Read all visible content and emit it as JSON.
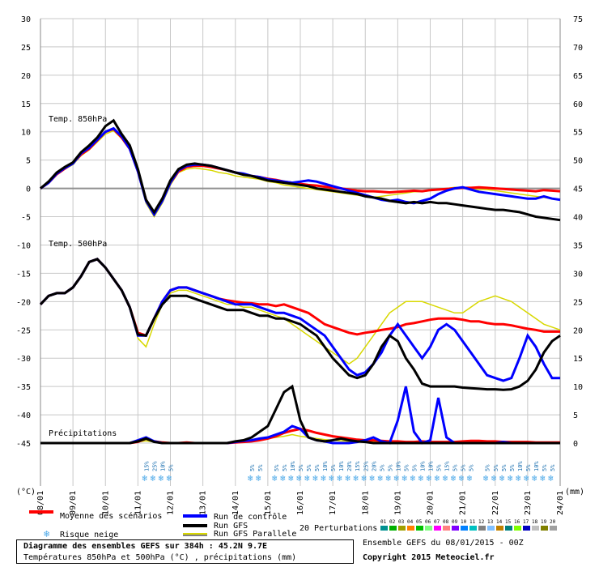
{
  "chart_data": {
    "type": "line",
    "title": "Diagramme des ensembles GEFS sur 384h : 45.2N 9.7E",
    "subtitle": "Températures 850hPa et 500hPa (°C) , précipitations (mm)",
    "left_axis": {
      "unit_label": "(°C)",
      "ticks": [
        30,
        25,
        20,
        15,
        10,
        5,
        0,
        -5,
        -10,
        -15,
        -20,
        -25,
        -30,
        -35,
        -40,
        -45
      ],
      "ylim": [
        -45,
        30
      ]
    },
    "right_axis": {
      "unit_label": "(mm)",
      "ticks": [
        75,
        70,
        65,
        60,
        55,
        50,
        45,
        40,
        35,
        30,
        25,
        20,
        15,
        10,
        5,
        0
      ],
      "ylim": [
        0,
        75
      ]
    },
    "x_axis": {
      "ticks": [
        "08/01",
        "09/01",
        "10/01",
        "11/01",
        "12/01",
        "13/01",
        "14/01",
        "15/01",
        "16/01",
        "17/01",
        "18/01",
        "19/01",
        "20/01",
        "21/01",
        "22/01",
        "23/01",
        "24/01"
      ],
      "step_hours": 6,
      "points": 65
    },
    "panel_labels": {
      "t850": "Temp. 850hPa",
      "t500": "Temp. 500hPa",
      "precip": "Précipitations"
    },
    "grid": true,
    "series": [
      {
        "name": "Moyenne des scénarios",
        "color": "#ff0000",
        "t850": [
          0,
          1,
          2.5,
          3.5,
          4.5,
          6,
          7,
          8.5,
          10,
          10.5,
          9,
          7,
          3,
          -2,
          -4.5,
          -2,
          1,
          3,
          3.8,
          4,
          4,
          3.8,
          3.5,
          3.2,
          2.8,
          2.5,
          2.2,
          2,
          1.7,
          1.5,
          1.2,
          1,
          0.8,
          0.6,
          0.5,
          0.3,
          0.1,
          0,
          -0.2,
          -0.4,
          -0.5,
          -0.5,
          -0.6,
          -0.7,
          -0.6,
          -0.5,
          -0.4,
          -0.5,
          -0.3,
          -0.2,
          -0.1,
          0,
          0.1,
          0.1,
          0.2,
          0.1,
          0,
          -0.1,
          -0.2,
          -0.3,
          -0.4,
          -0.5,
          -0.3,
          -0.4,
          -0.5
        ],
        "t500": [
          -20.5,
          -19,
          -18.5,
          -18.5,
          -17.5,
          -15.5,
          -13,
          -12.5,
          -14,
          -16,
          -18,
          -21,
          -25.5,
          -26,
          -23,
          -20,
          -18,
          -17.5,
          -17.5,
          -18,
          -18.5,
          -19,
          -19.5,
          -19.8,
          -20,
          -20.2,
          -20.3,
          -20.5,
          -20.5,
          -20.8,
          -20.5,
          -21,
          -21.5,
          -22,
          -23,
          -24,
          -24.5,
          -25,
          -25.5,
          -25.8,
          -25.5,
          -25.3,
          -25,
          -24.8,
          -24.5,
          -24,
          -23.8,
          -23.5,
          -23.2,
          -23,
          -23,
          -23,
          -23.2,
          -23.5,
          -23.5,
          -23.8,
          -24,
          -24,
          -24.2,
          -24.5,
          -24.8,
          -25,
          -25.3,
          -25.3,
          -25.3
        ],
        "precip": [
          0,
          0,
          0,
          0,
          0,
          0,
          0,
          0,
          0,
          0,
          0,
          0,
          0.2,
          0.8,
          0.3,
          0.1,
          0,
          0,
          0.1,
          0,
          0,
          0,
          0,
          0,
          0.1,
          0.2,
          0.3,
          0.5,
          0.8,
          1.2,
          1.8,
          2.2,
          2.5,
          2.2,
          1.8,
          1.5,
          1.2,
          1,
          0.8,
          0.6,
          0.5,
          0.5,
          0.4,
          0.3,
          0.3,
          0.2,
          0.2,
          0.3,
          0.2,
          0.2,
          0.2,
          0.2,
          0.3,
          0.4,
          0.4,
          0.3,
          0.3,
          0.2,
          0.2,
          0.2,
          0.2,
          0.1,
          0.1,
          0.1,
          0.1
        ]
      },
      {
        "name": "Run de contrôle",
        "color": "#0000ff",
        "t850": [
          0,
          1,
          2.6,
          3.6,
          4.4,
          6.2,
          7.2,
          8.6,
          10,
          10.6,
          9.2,
          7,
          3,
          -2.2,
          -4.6,
          -2.2,
          1,
          3.2,
          4,
          4.2,
          4.2,
          4,
          3.6,
          3.2,
          2.8,
          2.6,
          2.2,
          2,
          1.6,
          1.4,
          1.2,
          1,
          1.2,
          1.4,
          1.2,
          0.8,
          0.4,
          0,
          -0.4,
          -0.8,
          -1.2,
          -1.6,
          -2,
          -2.2,
          -2,
          -2.4,
          -2.6,
          -2.2,
          -1.8,
          -1,
          -0.4,
          0,
          0.2,
          -0.2,
          -0.6,
          -0.8,
          -1,
          -1.2,
          -1.4,
          -1.6,
          -1.8,
          -1.8,
          -1.4,
          -1.8,
          -2
        ],
        "t500": [
          -20.5,
          -19,
          -18.5,
          -18.5,
          -17.5,
          -15.5,
          -13,
          -12.5,
          -14,
          -16,
          -18,
          -21,
          -26,
          -26,
          -23,
          -20,
          -18,
          -17.5,
          -17.5,
          -18,
          -18.5,
          -19,
          -19.5,
          -20,
          -20.5,
          -20.5,
          -20.5,
          -21,
          -21.5,
          -22,
          -22,
          -22.5,
          -23,
          -24,
          -25,
          -26,
          -28,
          -30,
          -32,
          -33,
          -32.5,
          -31,
          -29,
          -26,
          -24,
          -26,
          -28,
          -30,
          -28,
          -25,
          -24,
          -25,
          -27,
          -29,
          -31,
          -33,
          -33.5,
          -34,
          -33.5,
          -30,
          -26,
          -28,
          -31,
          -33.5,
          -33.5
        ],
        "precip": [
          0,
          0,
          0,
          0,
          0,
          0,
          0,
          0,
          0,
          0,
          0,
          0,
          0.5,
          1,
          0.3,
          0,
          0,
          0,
          0,
          0,
          0,
          0,
          0,
          0,
          0.2,
          0.4,
          0.5,
          0.8,
          1,
          1.5,
          2,
          3,
          2.5,
          1,
          0.5,
          0.3,
          0,
          0,
          0,
          0.2,
          0.5,
          1,
          0.3,
          0,
          4,
          10,
          2,
          0,
          0.5,
          8,
          1,
          0,
          0,
          0,
          0,
          0,
          0,
          0.2,
          0,
          0,
          0,
          0,
          0,
          0,
          0
        ]
      },
      {
        "name": "Run GFS",
        "color": "#000000",
        "t850": [
          0,
          1.2,
          2.8,
          3.8,
          4.6,
          6.4,
          7.6,
          9,
          11,
          12,
          9.6,
          7.6,
          3.4,
          -2,
          -4.2,
          -1.8,
          1.4,
          3.4,
          4.2,
          4.4,
          4.2,
          4,
          3.6,
          3.2,
          2.8,
          2.4,
          2.2,
          1.8,
          1.4,
          1.2,
          1,
          0.8,
          0.6,
          0.4,
          0,
          -0.2,
          -0.4,
          -0.6,
          -0.8,
          -1,
          -1.4,
          -1.6,
          -1.8,
          -2.2,
          -2.4,
          -2.6,
          -2.4,
          -2.6,
          -2.4,
          -2.6,
          -2.6,
          -2.8,
          -3,
          -3.2,
          -3.4,
          -3.6,
          -3.8,
          -3.8,
          -4,
          -4.2,
          -4.6,
          -5,
          -5.2,
          -5.4,
          -5.6
        ],
        "t500": [
          -20.5,
          -19,
          -18.5,
          -18.5,
          -17.5,
          -15.5,
          -13,
          -12.5,
          -14,
          -16,
          -18,
          -21,
          -25.8,
          -26,
          -23,
          -20.5,
          -19,
          -19,
          -19,
          -19.5,
          -20,
          -20.5,
          -21,
          -21.5,
          -21.5,
          -21.5,
          -22,
          -22.5,
          -22.5,
          -23,
          -23,
          -23.5,
          -24,
          -25,
          -26,
          -28,
          -30,
          -31.5,
          -33,
          -33.5,
          -33,
          -31,
          -28,
          -26,
          -27,
          -30,
          -32,
          -34.5,
          -35,
          -35,
          -35,
          -35,
          -35.2,
          -35.3,
          -35.4,
          -35.5,
          -35.5,
          -35.6,
          -35.5,
          -35,
          -34,
          -32,
          -29,
          -27,
          -26
        ],
        "precip": [
          0,
          0,
          0,
          0,
          0,
          0,
          0,
          0,
          0,
          0,
          0,
          0,
          0.3,
          0.8,
          0.2,
          0,
          0,
          0,
          0,
          0,
          0,
          0,
          0,
          0,
          0.3,
          0.5,
          1,
          2,
          3,
          6,
          9,
          10,
          4,
          1,
          0.5,
          0.3,
          0.5,
          0.8,
          0.5,
          0.3,
          0.2,
          0,
          0,
          0,
          0,
          0,
          0,
          0,
          0,
          0,
          0,
          0,
          0,
          0,
          0,
          0,
          0,
          0,
          0,
          0,
          0,
          0,
          0,
          0,
          0
        ]
      },
      {
        "name": "Run GFS Parallele",
        "color": "#d8d800",
        "t850": [
          0,
          1,
          2.4,
          3.4,
          4.2,
          5.8,
          6.8,
          8.2,
          9.6,
          10.2,
          8.8,
          6.8,
          2.8,
          -2.6,
          -5,
          -2.6,
          0.6,
          2.8,
          3.4,
          3.6,
          3.4,
          3.2,
          2.8,
          2.6,
          2.2,
          2,
          1.8,
          1.6,
          1.2,
          1,
          0.6,
          0.4,
          0.2,
          0,
          -0.2,
          -0.4,
          -0.6,
          -0.8,
          -1,
          -1.2,
          -1.4,
          -1.6,
          -1.4,
          -1.2,
          -1,
          -0.8,
          -0.6,
          -0.6,
          -0.4,
          -0.2,
          0,
          0.2,
          0.2,
          0,
          -0.2,
          -0.2,
          -0.4,
          -0.6,
          -0.8,
          -1,
          -1.2,
          -1.4,
          -1.6,
          -1.8,
          -2
        ],
        "t500": [
          -20.5,
          -19,
          -18.5,
          -18.5,
          -17.5,
          -15.5,
          -13,
          -12.5,
          -14,
          -16,
          -18,
          -21,
          -26.5,
          -28,
          -24,
          -20.5,
          -18.5,
          -18,
          -18,
          -18.5,
          -19,
          -19.5,
          -20,
          -20.5,
          -20.5,
          -21,
          -21,
          -21.5,
          -22,
          -22.5,
          -23,
          -24,
          -25,
          -26,
          -27,
          -28,
          -29,
          -30,
          -31,
          -30,
          -28,
          -26,
          -24,
          -22,
          -21,
          -20,
          -20,
          -20,
          -20.5,
          -21,
          -21.5,
          -22,
          -22,
          -21,
          -20,
          -19.5,
          -19,
          -19.5,
          -20,
          -21,
          -22,
          -23,
          -24,
          -24.5,
          -25
        ],
        "precip": [
          0,
          0,
          0,
          0,
          0,
          0,
          0,
          0,
          0,
          0,
          0,
          0,
          0.2,
          0.4,
          0.2,
          0,
          0,
          0,
          0,
          0,
          0,
          0,
          0,
          0,
          0.1,
          0.2,
          0.3,
          0.5,
          0.8,
          1,
          1.2,
          1.5,
          1.2,
          1,
          0.8,
          0.6,
          0.5,
          0.4,
          0.3,
          0.2,
          0.2,
          0.2,
          0.1,
          0.1,
          0.1,
          0.1,
          0.1,
          0.2,
          0.2,
          0.2,
          0.1,
          0.1,
          0.1,
          0.1,
          0.1,
          0.1,
          0.1,
          0.1,
          0.1,
          0.1,
          0.1,
          0.1,
          0.1,
          0.1,
          0.1
        ]
      }
    ],
    "perturbations": {
      "label": "20 Perturbations",
      "ids": [
        "01",
        "02",
        "03",
        "04",
        "05",
        "06",
        "07",
        "08",
        "09",
        "10",
        "11",
        "12",
        "13",
        "14",
        "15",
        "16",
        "17",
        "18",
        "19",
        "20"
      ],
      "colors": [
        "#009090",
        "#00b000",
        "#a0a000",
        "#ff8000",
        "#00c000",
        "#80ff80",
        "#ff00ff",
        "#ff8080",
        "#8000ff",
        "#0080ff",
        "#00c0c0",
        "#808080",
        "#80c0ff",
        "#c08000",
        "#008080",
        "#80ff00",
        "#0000c0",
        "#c0c0c0",
        "#808000",
        "#a0a0a0"
      ]
    },
    "snow_risk": [
      {
        "index": 13,
        "text": "15%"
      },
      {
        "index": 14,
        "text": "25%"
      },
      {
        "index": 15,
        "text": "10%"
      },
      {
        "index": 16,
        "text": "5%"
      },
      {
        "index": 26,
        "text": "5%"
      },
      {
        "index": 27,
        "text": "5%"
      },
      {
        "index": 29,
        "text": "5%"
      },
      {
        "index": 30,
        "text": "5%"
      },
      {
        "index": 31,
        "text": "10%"
      },
      {
        "index": 32,
        "text": "5%"
      },
      {
        "index": 33,
        "text": "5%"
      },
      {
        "index": 34,
        "text": "5%"
      },
      {
        "index": 35,
        "text": "10%"
      },
      {
        "index": 36,
        "text": "5%"
      },
      {
        "index": 37,
        "text": "10%"
      },
      {
        "index": 38,
        "text": "20%"
      },
      {
        "index": 39,
        "text": "15%"
      },
      {
        "index": 40,
        "text": "25%"
      },
      {
        "index": 41,
        "text": "20%"
      },
      {
        "index": 42,
        "text": "5%"
      },
      {
        "index": 43,
        "text": "5%"
      },
      {
        "index": 44,
        "text": "10%"
      },
      {
        "index": 45,
        "text": "5%"
      },
      {
        "index": 46,
        "text": "5%"
      },
      {
        "index": 47,
        "text": "10%"
      },
      {
        "index": 48,
        "text": "10%"
      },
      {
        "index": 49,
        "text": "5%"
      },
      {
        "index": 50,
        "text": "15%"
      },
      {
        "index": 51,
        "text": "5%"
      },
      {
        "index": 52,
        "text": "5%"
      },
      {
        "index": 53,
        "text": "5%"
      },
      {
        "index": 55,
        "text": "5%"
      },
      {
        "index": 56,
        "text": "5%"
      },
      {
        "index": 57,
        "text": "5%"
      },
      {
        "index": 58,
        "text": "5%"
      },
      {
        "index": 59,
        "text": "10%"
      },
      {
        "index": 60,
        "text": "5%"
      },
      {
        "index": 61,
        "text": "10%"
      },
      {
        "index": 62,
        "text": "5%"
      },
      {
        "index": 63,
        "text": "5%"
      }
    ]
  },
  "legend": {
    "mean": "Moyenne des scénarios",
    "snow": "Risque neige",
    "control": "Run de contrôle",
    "gfs": "Run GFS",
    "gfs_parallel": "Run GFS Parallele"
  },
  "footer": {
    "title": "Diagramme des ensembles GEFS sur 384h : 45.2N 9.7E",
    "subtitle": "Températures 850hPa et 500hPa (°C) , précipitations (mm)",
    "run_info": "Ensemble GEFS du 08/01/2015 - 00Z",
    "copyright": "Copyright 2015 Meteociel.fr"
  }
}
